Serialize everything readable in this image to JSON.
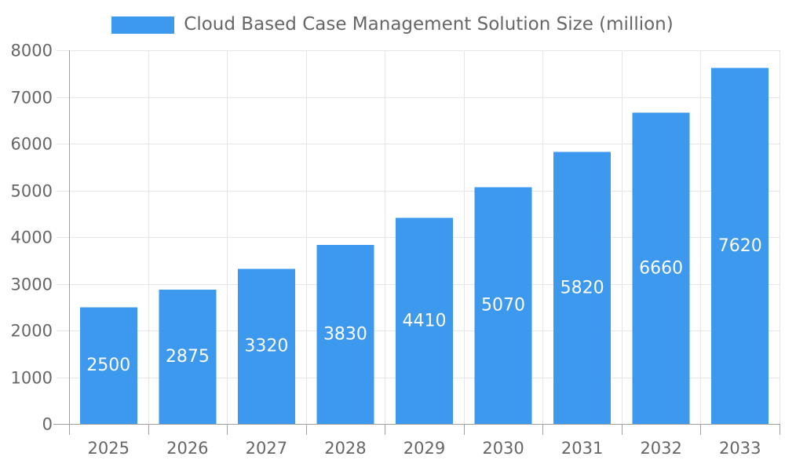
{
  "chart_data": {
    "type": "bar",
    "title": "Cloud Based Case Management Solution Size (million)",
    "categories": [
      "2025",
      "2026",
      "2027",
      "2028",
      "2029",
      "2030",
      "2031",
      "2032",
      "2033"
    ],
    "series": [
      {
        "name": "Cloud Based Case Management Solution Size (million)",
        "values": [
          2500,
          2875,
          3320,
          3830,
          4410,
          5070,
          5820,
          6660,
          7620
        ]
      }
    ],
    "xlabel": "",
    "ylabel": "",
    "ylim": [
      0,
      8000
    ],
    "ytick_step": 1000,
    "ytick_labels": [
      "0",
      "1000",
      "2000",
      "3000",
      "4000",
      "5000",
      "6000",
      "7000",
      "8000"
    ],
    "grid": true,
    "legend_position": "top-center",
    "value_label_position": "inside-center",
    "colors": {
      "bar": "#3C99ED",
      "axis_text": "#666666",
      "grid_line": "#e6e6e6",
      "axis_line": "#a0a0a0",
      "value_label": "#ffffff",
      "background": "#ffffff"
    }
  }
}
